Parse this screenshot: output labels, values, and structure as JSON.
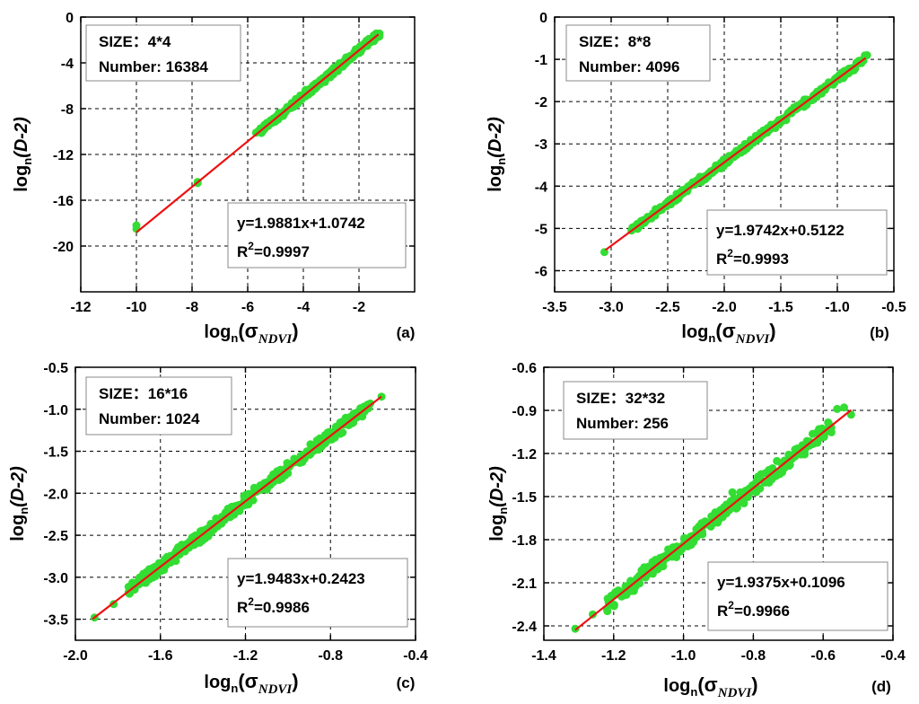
{
  "chart_data": [
    {
      "type": "scatter",
      "tag": "(a)",
      "size_label": "SIZE：4*4",
      "number_label": "Number: 16384",
      "equation": "y=1.9881x+1.0742",
      "r2_value": "=0.9997",
      "xlabel_main": "log",
      "xlabel_sub": "n",
      "xlabel_sigma": "(σ",
      "xlabel_sigma_sub": "NDVI",
      "xlabel_close": ")",
      "ylabel_main": "log",
      "ylabel_sub": "n",
      "ylabel_rest": "(D-2)",
      "xlim": [
        -12,
        0
      ],
      "ylim": [
        -24,
        0
      ],
      "xticks": [
        -12,
        -10,
        -8,
        -6,
        -4,
        -2
      ],
      "xtick_labels": [
        "-12",
        "-10",
        "-8",
        "-6",
        "-4",
        "-2"
      ],
      "yticks": [
        -20,
        -16,
        -12,
        -8,
        -4,
        0
      ],
      "ytick_labels": [
        "-20",
        "-16",
        "-12",
        "-8",
        "-4",
        "0"
      ],
      "fit": {
        "slope": 1.9881,
        "intercept": 1.0742,
        "x_range": [
          -10,
          -1.3
        ]
      },
      "point_color": "#33dd33",
      "line_color": "#ee1111",
      "points": [
        [
          -10.0,
          -18.2
        ],
        [
          -10.0,
          -18.5
        ],
        [
          -7.8,
          -14.4
        ],
        [
          -7.8,
          -14.5
        ],
        [
          -5.7,
          -10.1
        ]
      ],
      "cloud": {
        "x_range": [
          -5.6,
          -1.3
        ],
        "spread": 0.25,
        "count": 90
      }
    },
    {
      "type": "scatter",
      "tag": "(b)",
      "size_label": "SIZE：8*8",
      "number_label": "Number: 4096",
      "equation": "y=1.9742x+0.5122",
      "r2_value": "=0.9993",
      "xlabel_main": "log",
      "xlabel_sub": "n",
      "xlabel_sigma": "(σ",
      "xlabel_sigma_sub": "NDVI",
      "xlabel_close": ")",
      "ylabel_main": "log",
      "ylabel_sub": "n",
      "ylabel_rest": "(D-2)",
      "xlim": [
        -3.5,
        -0.5
      ],
      "ylim": [
        -6.5,
        0
      ],
      "xticks": [
        -3.5,
        -3.0,
        -2.5,
        -2.0,
        -1.5,
        -1.0,
        -0.5
      ],
      "xtick_labels": [
        "-3.5",
        "-3.0",
        "-2.5",
        "-2.0",
        "-1.5",
        "-1.0",
        "-0.5"
      ],
      "yticks": [
        -6,
        -5,
        -4,
        -3,
        -2,
        -1,
        0
      ],
      "ytick_labels": [
        "-6",
        "-5",
        "-4",
        "-3",
        "-2",
        "-1",
        "0"
      ],
      "fit": {
        "slope": 1.9742,
        "intercept": 0.5122,
        "x_range": [
          -3.05,
          -0.75
        ]
      },
      "point_color": "#33dd33",
      "line_color": "#ee1111",
      "points": [
        [
          -3.06,
          -5.56
        ],
        [
          -2.82,
          -5.05
        ]
      ],
      "cloud": {
        "x_range": [
          -2.8,
          -0.75
        ],
        "spread": 0.07,
        "count": 90
      }
    },
    {
      "type": "scatter",
      "tag": "(c)",
      "size_label": "SIZE：16*16",
      "number_label": "Number: 1024",
      "equation": "y=1.9483x+0.2423",
      "r2_value": "=0.9986",
      "xlabel_main": "log",
      "xlabel_sub": "n",
      "xlabel_sigma": "(σ",
      "xlabel_sigma_sub": "NDVI",
      "xlabel_close": ")",
      "ylabel_main": "log",
      "ylabel_sub": "n",
      "ylabel_rest": "(D-2)",
      "xlim": [
        -2.0,
        -0.4
      ],
      "ylim": [
        -3.75,
        -0.5
      ],
      "xticks": [
        -2.0,
        -1.6,
        -1.2,
        -0.8,
        -0.4
      ],
      "xtick_labels": [
        "-2.0",
        "-1.6",
        "-1.2",
        "-0.8",
        "-0.4"
      ],
      "yticks": [
        -3.5,
        -3.0,
        -2.5,
        -2.0,
        -1.5,
        -1.0,
        -0.5
      ],
      "ytick_labels": [
        "-3.5",
        "-3.0",
        "-2.5",
        "-2.0",
        "-1.5",
        "-1.0",
        "-0.5"
      ],
      "fit": {
        "slope": 1.9483,
        "intercept": 0.2423,
        "x_range": [
          -1.92,
          -0.56
        ]
      },
      "point_color": "#33dd33",
      "line_color": "#ee1111",
      "points": [
        [
          -1.91,
          -3.48
        ],
        [
          -1.82,
          -3.32
        ],
        [
          -0.56,
          -0.85
        ]
      ],
      "cloud": {
        "x_range": [
          -1.75,
          -0.62
        ],
        "spread": 0.07,
        "count": 90
      }
    },
    {
      "type": "scatter",
      "tag": "(d)",
      "size_label": "SIZE：32*32",
      "number_label": "Number: 256",
      "equation": "y=1.9375x+0.1096",
      "r2_value": "=0.9966",
      "xlabel_main": "log",
      "xlabel_sub": "n",
      "xlabel_sigma": "(σ",
      "xlabel_sigma_sub": "NDVI",
      "xlabel_close": ")",
      "ylabel_main": "log",
      "ylabel_sub": "n",
      "ylabel_rest": "(D-2)",
      "xlim": [
        -1.4,
        -0.4
      ],
      "ylim": [
        -2.5,
        -0.6
      ],
      "xticks": [
        -1.4,
        -1.2,
        -1.0,
        -0.8,
        -0.6,
        -0.4
      ],
      "xtick_labels": [
        "-1.4",
        "-1.2",
        "-1.0",
        "-0.8",
        "-0.6",
        "-0.4"
      ],
      "yticks": [
        -2.4,
        -2.1,
        -1.8,
        -1.5,
        -1.2,
        -0.9,
        -0.6
      ],
      "ytick_labels": [
        "-2.4",
        "-2.1",
        "-1.8",
        "-1.5",
        "-1.2",
        "-0.9",
        "-0.6"
      ],
      "fit": {
        "slope": 1.9375,
        "intercept": 0.1096,
        "x_range": [
          -1.31,
          -0.52
        ]
      },
      "point_color": "#33dd33",
      "line_color": "#ee1111",
      "points": [
        [
          -1.31,
          -2.42
        ],
        [
          -1.26,
          -2.32
        ],
        [
          -0.86,
          -1.47
        ],
        [
          -0.56,
          -0.89
        ],
        [
          -0.54,
          -0.88
        ],
        [
          -0.52,
          -0.93
        ]
      ],
      "cloud": {
        "x_range": [
          -1.22,
          -0.58
        ],
        "spread": 0.05,
        "count": 70
      }
    }
  ]
}
